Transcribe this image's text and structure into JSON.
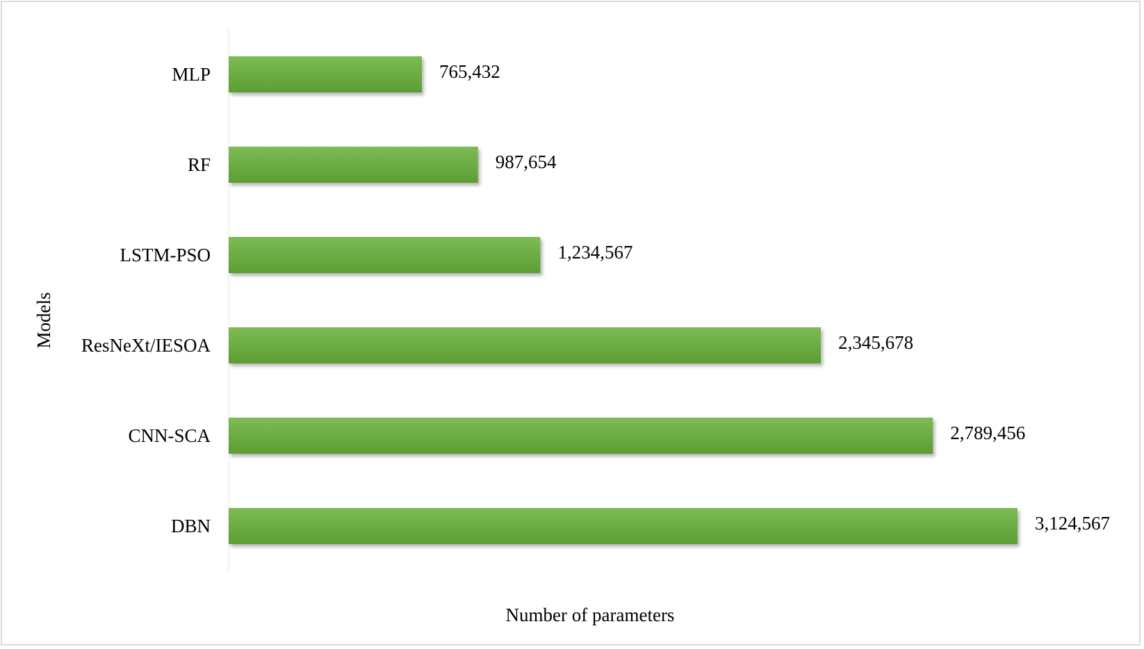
{
  "chart_data": {
    "type": "bar",
    "orientation": "horizontal",
    "categories": [
      "MLP",
      "RF",
      "LSTM-PSO",
      "ResNeXt/IESOA",
      "CNN-SCA",
      "DBN"
    ],
    "values": [
      765432,
      987654,
      1234567,
      2345678,
      2789456,
      3124567
    ],
    "value_labels": [
      "765,432",
      "987,654",
      "1,234,567",
      "2,345,678",
      "2,789,456",
      "3,124,567"
    ],
    "xlabel": "Number of  parameters",
    "ylabel": "Models",
    "xlim": [
      0,
      3124567
    ],
    "grid": false,
    "legend": "none",
    "colors": {
      "bar_top": "#7dbb56",
      "bar_bottom": "#5c9d32",
      "frame": "#d9d9d9",
      "axis_line": "#eeeeee"
    }
  }
}
